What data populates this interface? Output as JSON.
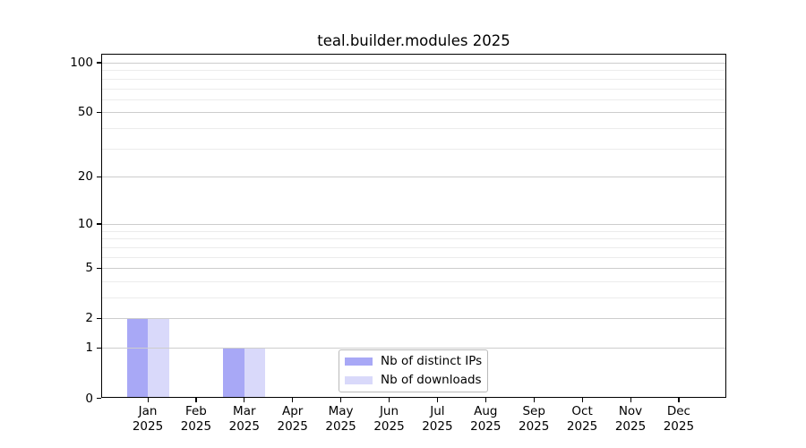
{
  "chart_data": {
    "type": "bar",
    "title": "teal.builder.modules 2025",
    "categories": [
      "Jan 2025",
      "Feb 2025",
      "Mar 2025",
      "Apr 2025",
      "May 2025",
      "Jun 2025",
      "Jul 2025",
      "Aug 2025",
      "Sep 2025",
      "Oct 2025",
      "Nov 2025",
      "Dec 2025"
    ],
    "series": [
      {
        "name": "Nb of distinct IPs",
        "color": "#a8a8f6",
        "values": [
          2,
          0,
          1,
          0,
          0,
          0,
          0,
          0,
          0,
          0,
          0,
          0
        ]
      },
      {
        "name": "Nb of downloads",
        "color": "#d9d9fa",
        "values": [
          2,
          0,
          1,
          0,
          0,
          0,
          0,
          0,
          0,
          0,
          0,
          0
        ]
      }
    ],
    "y_axis": {
      "scale": "log1p",
      "ticks": [
        0,
        1,
        2,
        5,
        10,
        20,
        50,
        100
      ],
      "minor_gridlines": [
        3,
        4,
        6,
        7,
        8,
        9,
        30,
        40,
        60,
        70,
        80,
        90
      ],
      "range": [
        0,
        113
      ]
    },
    "xlabel": "",
    "ylabel": "",
    "grid": "horizontal",
    "legend_position": "lower-center-inside"
  },
  "colors": {
    "grid_major": "#cdcdcd",
    "grid_minor": "#ececec",
    "axis": "#000000",
    "background": "#ffffff"
  }
}
